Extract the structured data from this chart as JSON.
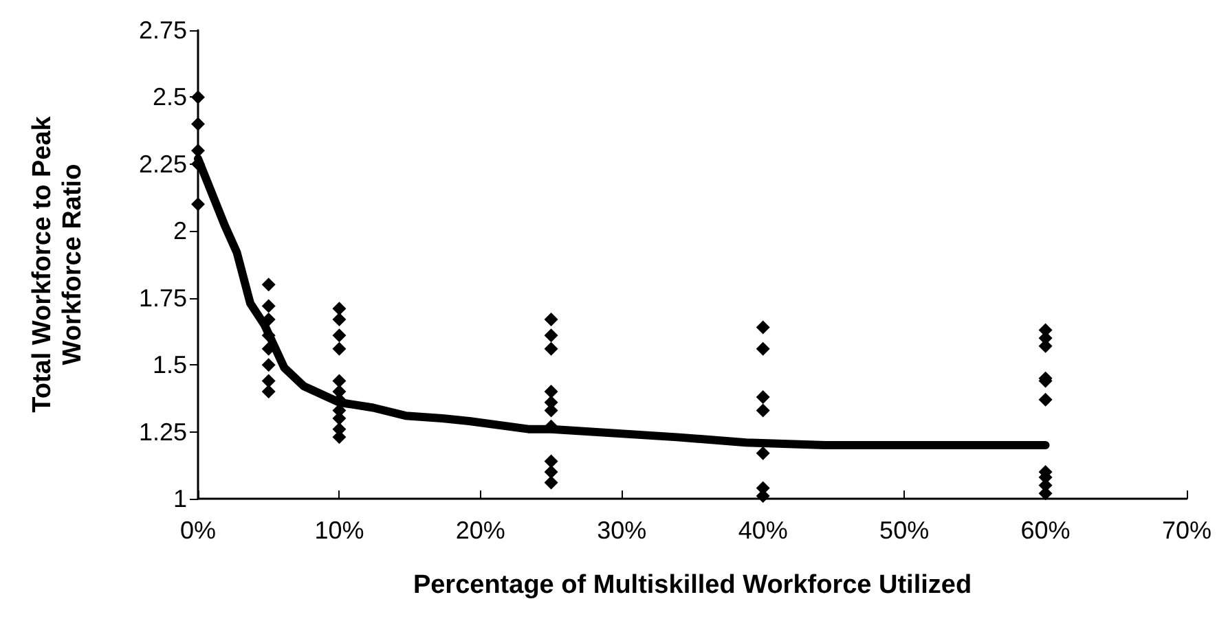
{
  "chart_data": {
    "type": "scatter",
    "xlabel": "Percentage of Multiskilled Workforce Utilized",
    "ylabel": "Total Workforce to Peak\nWorkforce Ratio",
    "xlim": [
      0,
      70
    ],
    "xticks": [
      {
        "value": 0,
        "label": "0%"
      },
      {
        "value": 10,
        "label": "10%"
      },
      {
        "value": 20,
        "label": "20%"
      },
      {
        "value": 30,
        "label": "30%"
      },
      {
        "value": 40,
        "label": "40%"
      },
      {
        "value": 50,
        "label": "50%"
      },
      {
        "value": 60,
        "label": "60%"
      },
      {
        "value": 70,
        "label": "70%"
      }
    ],
    "ylim": [
      1,
      2.75
    ],
    "yticks": [
      1,
      1.25,
      1.5,
      1.75,
      2,
      2.25,
      2.5,
      2.75
    ],
    "series": [
      {
        "color": "#000000",
        "marker": "diamond",
        "x": [
          0,
          0,
          0,
          0,
          0,
          5,
          5,
          5,
          5,
          5,
          5,
          5,
          5,
          10,
          10,
          10,
          10,
          10,
          10,
          10,
          10,
          10,
          10,
          10,
          25,
          25,
          25,
          25,
          25,
          25,
          25,
          25,
          25,
          25,
          40,
          40,
          40,
          40,
          40,
          40,
          40,
          60,
          60,
          60,
          60,
          60,
          60,
          60,
          60,
          60,
          60
        ],
        "values": [
          2.5,
          2.4,
          2.3,
          2.25,
          2.1,
          1.8,
          1.72,
          1.67,
          1.61,
          1.56,
          1.5,
          1.44,
          1.4,
          1.71,
          1.67,
          1.61,
          1.56,
          1.44,
          1.4,
          1.37,
          1.33,
          1.3,
          1.26,
          1.23,
          1.67,
          1.61,
          1.56,
          1.4,
          1.36,
          1.33,
          1.27,
          1.14,
          1.1,
          1.06,
          1.64,
          1.56,
          1.38,
          1.33,
          1.17,
          1.04,
          1.01,
          1.63,
          1.6,
          1.57,
          1.45,
          1.44,
          1.37,
          1.1,
          1.08,
          1.05,
          1.02
        ]
      },
      {
        "type": "line",
        "color": "#000000",
        "marker": "none",
        "line_style": "solid",
        "x": [
          0,
          1.9,
          2.75,
          3.7,
          4.7,
          6.1,
          7.5,
          10,
          12.4,
          14.7,
          17.3,
          19.2,
          23.4,
          25,
          33.9,
          38.8,
          44.4,
          60
        ],
        "values": [
          2.27,
          2.02,
          1.92,
          1.73,
          1.65,
          1.49,
          1.42,
          1.36,
          1.34,
          1.31,
          1.3,
          1.29,
          1.26,
          1.26,
          1.23,
          1.21,
          1.2,
          1.2
        ]
      }
    ]
  }
}
